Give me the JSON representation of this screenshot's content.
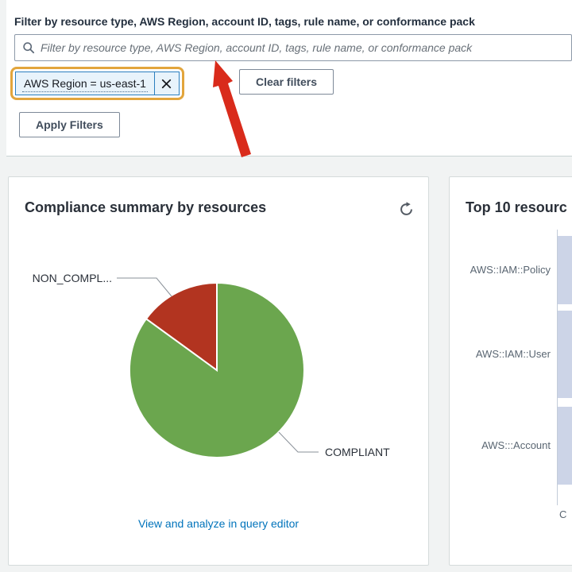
{
  "filter_panel": {
    "label": "Filter by resource type, AWS Region, account ID, tags, rule name, or conformance pack",
    "search_placeholder": "Filter by resource type, AWS Region, account ID, tags, rule name, or conformance pack",
    "token": {
      "label": "AWS Region = us-east-1"
    },
    "clear_filters_label": "Clear filters",
    "apply_filters_label": "Apply Filters"
  },
  "annotations": {
    "highlight_ring_color": "#e2a53c",
    "arrow_color": "#d92b1b"
  },
  "compliance_card": {
    "title": "Compliance summary by resources",
    "link_label": "View and analyze in query editor",
    "link_color": "#0073bb"
  },
  "top_resources_card": {
    "title": "Top 10 resourc",
    "items": [
      "AWS::IAM::Policy",
      "AWS::IAM::User",
      "AWS:::Account"
    ]
  },
  "chart_data": [
    {
      "type": "pie",
      "title": "Compliance summary by resources",
      "slices": [
        {
          "label": "COMPLIANT",
          "display_label": "COMPLIANT",
          "value": 85,
          "color": "#6ba64e"
        },
        {
          "label": "NON_COMPLIANT",
          "display_label": "NON_COMPL...",
          "value": 15,
          "color": "#b23420"
        }
      ],
      "start_angle_deg": 0,
      "direction": "clockwise",
      "labels": "callout",
      "separator_color": "#ffffff"
    },
    {
      "type": "bar",
      "orientation": "horizontal",
      "title": "Top 10 resourc",
      "categories": [
        "AWS::IAM::Policy",
        "AWS::IAM::User",
        "AWS:::Account"
      ],
      "values": [
        null,
        null,
        null
      ],
      "bar_color": "#ccd4e7",
      "x_axis_label_visible": "C",
      "note": "bar lengths extend past the right edge of the screenshot; numeric values not visible"
    }
  ]
}
